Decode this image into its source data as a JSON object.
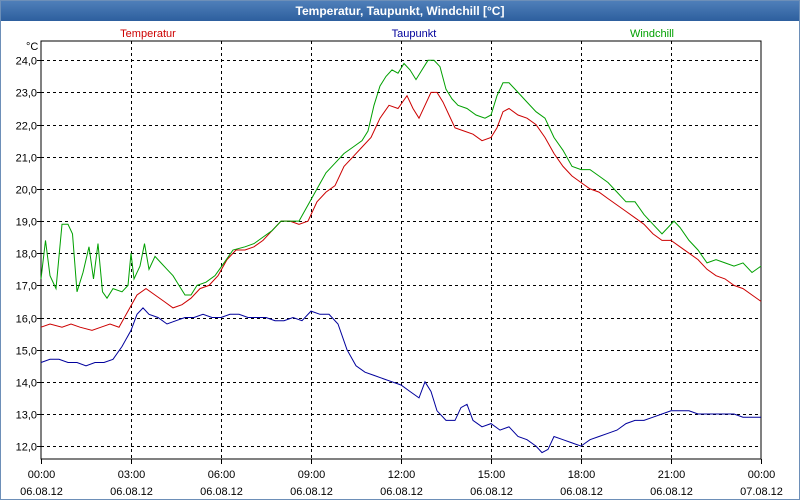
{
  "window": {
    "title": "Temperatur, Taupunkt, Windchill [°C]"
  },
  "chart_data": {
    "type": "line",
    "title": "Temperatur, Taupunkt, Windchill [°C]",
    "ylabel": "°C",
    "ylim": [
      11.6,
      24.6
    ],
    "y_ticks": [
      "12,0",
      "13,0",
      "14,0",
      "15,0",
      "16,0",
      "17,0",
      "18,0",
      "19,0",
      "20,0",
      "21,0",
      "22,0",
      "23,0",
      "24,0"
    ],
    "y_tick_values": [
      12,
      13,
      14,
      15,
      16,
      17,
      18,
      19,
      20,
      21,
      22,
      23,
      24
    ],
    "xlim": [
      0,
      24
    ],
    "x_ticks": [
      {
        "t": 0,
        "time": "00:00",
        "date": "06.08.12"
      },
      {
        "t": 3,
        "time": "03:00",
        "date": "06.08.12"
      },
      {
        "t": 6,
        "time": "06:00",
        "date": "06.08.12"
      },
      {
        "t": 9,
        "time": "09:00",
        "date": "06.08.12"
      },
      {
        "t": 12,
        "time": "12:00",
        "date": "06.08.12"
      },
      {
        "t": 15,
        "time": "15:00",
        "date": "06.08.12"
      },
      {
        "t": 18,
        "time": "18:00",
        "date": "06.08.12"
      },
      {
        "t": 21,
        "time": "21:00",
        "date": "06.08.12"
      },
      {
        "t": 24,
        "time": "00:00",
        "date": "07.08.12"
      }
    ],
    "grid": true,
    "series": [
      {
        "name": "Temperatur",
        "color": "#cc0000",
        "points": [
          [
            0,
            15.7
          ],
          [
            0.3,
            15.8
          ],
          [
            0.7,
            15.7
          ],
          [
            1,
            15.8
          ],
          [
            1.3,
            15.7
          ],
          [
            1.7,
            15.6
          ],
          [
            2,
            15.7
          ],
          [
            2.3,
            15.8
          ],
          [
            2.6,
            15.7
          ],
          [
            2.9,
            16.2
          ],
          [
            3.2,
            16.7
          ],
          [
            3.5,
            16.9
          ],
          [
            3.8,
            16.7
          ],
          [
            4.1,
            16.5
          ],
          [
            4.4,
            16.3
          ],
          [
            4.7,
            16.4
          ],
          [
            5,
            16.6
          ],
          [
            5.3,
            16.9
          ],
          [
            5.6,
            17.0
          ],
          [
            5.9,
            17.3
          ],
          [
            6.2,
            17.8
          ],
          [
            6.5,
            18.1
          ],
          [
            6.8,
            18.1
          ],
          [
            7.1,
            18.2
          ],
          [
            7.4,
            18.4
          ],
          [
            7.7,
            18.7
          ],
          [
            8,
            19.0
          ],
          [
            8.3,
            19.0
          ],
          [
            8.6,
            18.9
          ],
          [
            8.9,
            19.0
          ],
          [
            9.2,
            19.6
          ],
          [
            9.5,
            19.9
          ],
          [
            9.8,
            20.1
          ],
          [
            10.1,
            20.7
          ],
          [
            10.4,
            21.0
          ],
          [
            10.7,
            21.3
          ],
          [
            11,
            21.6
          ],
          [
            11.3,
            22.2
          ],
          [
            11.6,
            22.6
          ],
          [
            11.9,
            22.5
          ],
          [
            12.2,
            22.9
          ],
          [
            12.4,
            22.5
          ],
          [
            12.6,
            22.2
          ],
          [
            12.8,
            22.6
          ],
          [
            13,
            23.0
          ],
          [
            13.2,
            23.0
          ],
          [
            13.4,
            22.7
          ],
          [
            13.6,
            22.3
          ],
          [
            13.8,
            21.9
          ],
          [
            14.1,
            21.8
          ],
          [
            14.4,
            21.7
          ],
          [
            14.7,
            21.5
          ],
          [
            15,
            21.6
          ],
          [
            15.2,
            21.9
          ],
          [
            15.4,
            22.4
          ],
          [
            15.6,
            22.5
          ],
          [
            15.9,
            22.3
          ],
          [
            16.2,
            22.2
          ],
          [
            16.5,
            22.0
          ],
          [
            16.8,
            21.6
          ],
          [
            17.1,
            21.1
          ],
          [
            17.4,
            20.7
          ],
          [
            17.7,
            20.4
          ],
          [
            18,
            20.2
          ],
          [
            18.3,
            20.0
          ],
          [
            18.6,
            19.9
          ],
          [
            18.9,
            19.7
          ],
          [
            19.2,
            19.5
          ],
          [
            19.5,
            19.3
          ],
          [
            19.8,
            19.1
          ],
          [
            20.1,
            18.9
          ],
          [
            20.4,
            18.6
          ],
          [
            20.7,
            18.4
          ],
          [
            21,
            18.4
          ],
          [
            21.3,
            18.2
          ],
          [
            21.6,
            18.0
          ],
          [
            21.9,
            17.8
          ],
          [
            22.2,
            17.5
          ],
          [
            22.5,
            17.3
          ],
          [
            22.8,
            17.2
          ],
          [
            23.1,
            17.0
          ],
          [
            23.4,
            16.9
          ],
          [
            23.7,
            16.7
          ],
          [
            24,
            16.5
          ]
        ]
      },
      {
        "name": "Taupunkt",
        "color": "#00009c",
        "points": [
          [
            0,
            14.6
          ],
          [
            0.3,
            14.7
          ],
          [
            0.6,
            14.7
          ],
          [
            0.9,
            14.6
          ],
          [
            1.2,
            14.6
          ],
          [
            1.5,
            14.5
          ],
          [
            1.8,
            14.6
          ],
          [
            2.1,
            14.6
          ],
          [
            2.4,
            14.7
          ],
          [
            2.7,
            15.1
          ],
          [
            3,
            15.6
          ],
          [
            3.2,
            16.1
          ],
          [
            3.4,
            16.3
          ],
          [
            3.6,
            16.1
          ],
          [
            3.9,
            16.0
          ],
          [
            4.2,
            15.8
          ],
          [
            4.5,
            15.9
          ],
          [
            4.8,
            16.0
          ],
          [
            5.1,
            16.0
          ],
          [
            5.4,
            16.1
          ],
          [
            5.7,
            16.0
          ],
          [
            6,
            16.0
          ],
          [
            6.3,
            16.1
          ],
          [
            6.6,
            16.1
          ],
          [
            6.9,
            16.0
          ],
          [
            7.2,
            16.0
          ],
          [
            7.5,
            16.0
          ],
          [
            7.8,
            15.9
          ],
          [
            8.1,
            15.9
          ],
          [
            8.4,
            16.0
          ],
          [
            8.7,
            15.9
          ],
          [
            9,
            16.2
          ],
          [
            9.3,
            16.1
          ],
          [
            9.6,
            16.1
          ],
          [
            9.9,
            15.8
          ],
          [
            10.2,
            15.0
          ],
          [
            10.5,
            14.5
          ],
          [
            10.8,
            14.3
          ],
          [
            11.1,
            14.2
          ],
          [
            11.4,
            14.1
          ],
          [
            11.7,
            14.0
          ],
          [
            12,
            13.9
          ],
          [
            12.3,
            13.7
          ],
          [
            12.6,
            13.5
          ],
          [
            12.8,
            14.0
          ],
          [
            13,
            13.7
          ],
          [
            13.2,
            13.1
          ],
          [
            13.5,
            12.8
          ],
          [
            13.8,
            12.8
          ],
          [
            14,
            13.2
          ],
          [
            14.2,
            13.3
          ],
          [
            14.4,
            12.8
          ],
          [
            14.7,
            12.6
          ],
          [
            15,
            12.7
          ],
          [
            15.3,
            12.5
          ],
          [
            15.6,
            12.6
          ],
          [
            15.9,
            12.3
          ],
          [
            16.2,
            12.2
          ],
          [
            16.5,
            12.0
          ],
          [
            16.7,
            11.8
          ],
          [
            16.9,
            11.9
          ],
          [
            17.1,
            12.3
          ],
          [
            17.4,
            12.2
          ],
          [
            17.7,
            12.1
          ],
          [
            18,
            12.0
          ],
          [
            18.3,
            12.2
          ],
          [
            18.6,
            12.3
          ],
          [
            18.9,
            12.4
          ],
          [
            19.2,
            12.5
          ],
          [
            19.5,
            12.7
          ],
          [
            19.8,
            12.8
          ],
          [
            20.1,
            12.8
          ],
          [
            20.4,
            12.9
          ],
          [
            20.7,
            13.0
          ],
          [
            21,
            13.1
          ],
          [
            21.3,
            13.1
          ],
          [
            21.6,
            13.1
          ],
          [
            21.9,
            13.0
          ],
          [
            22.2,
            13.0
          ],
          [
            22.5,
            13.0
          ],
          [
            22.8,
            13.0
          ],
          [
            23.1,
            13.0
          ],
          [
            23.4,
            12.9
          ],
          [
            23.7,
            12.9
          ],
          [
            24,
            12.9
          ]
        ]
      },
      {
        "name": "Windchill",
        "color": "#00a000",
        "points": [
          [
            0,
            17.2
          ],
          [
            0.15,
            18.4
          ],
          [
            0.3,
            17.3
          ],
          [
            0.5,
            16.9
          ],
          [
            0.7,
            18.9
          ],
          [
            0.9,
            18.9
          ],
          [
            1.05,
            18.6
          ],
          [
            1.2,
            16.8
          ],
          [
            1.4,
            17.4
          ],
          [
            1.6,
            18.2
          ],
          [
            1.75,
            17.2
          ],
          [
            1.9,
            18.3
          ],
          [
            2.05,
            16.8
          ],
          [
            2.2,
            16.6
          ],
          [
            2.4,
            16.9
          ],
          [
            2.7,
            16.8
          ],
          [
            2.9,
            17.0
          ],
          [
            3.0,
            18.0
          ],
          [
            3.1,
            17.2
          ],
          [
            3.3,
            17.6
          ],
          [
            3.45,
            18.3
          ],
          [
            3.6,
            17.5
          ],
          [
            3.8,
            17.9
          ],
          [
            4,
            17.7
          ],
          [
            4.2,
            17.5
          ],
          [
            4.4,
            17.3
          ],
          [
            4.6,
            17.0
          ],
          [
            4.8,
            16.7
          ],
          [
            5,
            16.7
          ],
          [
            5.2,
            17.0
          ],
          [
            5.5,
            17.1
          ],
          [
            5.8,
            17.3
          ],
          [
            6.1,
            17.7
          ],
          [
            6.4,
            18.1
          ],
          [
            6.8,
            18.2
          ],
          [
            7.1,
            18.3
          ],
          [
            7.4,
            18.5
          ],
          [
            7.7,
            18.7
          ],
          [
            8,
            19.0
          ],
          [
            8.3,
            19.0
          ],
          [
            8.6,
            19.0
          ],
          [
            8.9,
            19.5
          ],
          [
            9.2,
            20.0
          ],
          [
            9.5,
            20.5
          ],
          [
            9.8,
            20.8
          ],
          [
            10.1,
            21.1
          ],
          [
            10.4,
            21.3
          ],
          [
            10.7,
            21.5
          ],
          [
            10.9,
            21.8
          ],
          [
            11.1,
            22.6
          ],
          [
            11.3,
            23.2
          ],
          [
            11.5,
            23.5
          ],
          [
            11.7,
            23.7
          ],
          [
            11.9,
            23.6
          ],
          [
            12.1,
            23.9
          ],
          [
            12.3,
            23.7
          ],
          [
            12.5,
            23.4
          ],
          [
            12.7,
            23.7
          ],
          [
            12.9,
            24.0
          ],
          [
            13.1,
            24.0
          ],
          [
            13.3,
            23.8
          ],
          [
            13.5,
            23.1
          ],
          [
            13.7,
            22.8
          ],
          [
            13.9,
            22.6
          ],
          [
            14.2,
            22.5
          ],
          [
            14.5,
            22.3
          ],
          [
            14.8,
            22.2
          ],
          [
            15.0,
            22.3
          ],
          [
            15.2,
            22.9
          ],
          [
            15.4,
            23.3
          ],
          [
            15.6,
            23.3
          ],
          [
            15.9,
            23.0
          ],
          [
            16.2,
            22.7
          ],
          [
            16.5,
            22.4
          ],
          [
            16.8,
            22.2
          ],
          [
            17.1,
            21.6
          ],
          [
            17.4,
            21.2
          ],
          [
            17.7,
            20.7
          ],
          [
            18,
            20.6
          ],
          [
            18.3,
            20.6
          ],
          [
            18.6,
            20.4
          ],
          [
            18.9,
            20.2
          ],
          [
            19.2,
            19.9
          ],
          [
            19.5,
            19.6
          ],
          [
            19.8,
            19.6
          ],
          [
            20.1,
            19.2
          ],
          [
            20.4,
            18.9
          ],
          [
            20.7,
            18.6
          ],
          [
            20.9,
            18.8
          ],
          [
            21.1,
            19.0
          ],
          [
            21.3,
            18.8
          ],
          [
            21.6,
            18.4
          ],
          [
            21.9,
            18.1
          ],
          [
            22.2,
            17.7
          ],
          [
            22.5,
            17.8
          ],
          [
            22.8,
            17.7
          ],
          [
            23.1,
            17.6
          ],
          [
            23.4,
            17.7
          ],
          [
            23.7,
            17.4
          ],
          [
            24,
            17.6
          ]
        ]
      }
    ]
  }
}
